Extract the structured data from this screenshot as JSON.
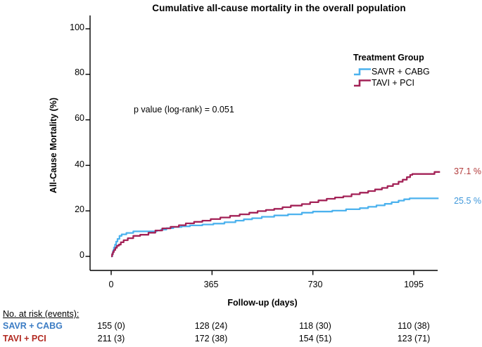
{
  "chart_data": {
    "type": "line",
    "subtype": "kaplan-meier-step",
    "title": "Cumulative all-cause mortality in the overall population",
    "xlabel": "Follow-up (days)",
    "ylabel": "All-Cause Mortality (%)",
    "xticks": [
      0,
      365,
      730,
      1095
    ],
    "yticks": [
      0,
      20,
      40,
      60,
      80,
      100
    ],
    "xlim": [
      0,
      1190
    ],
    "ylim": [
      0,
      100
    ],
    "grid": false,
    "annotation": "p value (log-rank) = 0.051",
    "legend": {
      "title": "Treatment Group",
      "position": "upper right"
    },
    "series": [
      {
        "name": "SAVR + CABG",
        "color": "#4CB2EE",
        "end_label": "25.5 %",
        "end_label_color": "#3E97DA",
        "points": [
          [
            0,
            0
          ],
          [
            4,
            1.3
          ],
          [
            7,
            2.6
          ],
          [
            10,
            3.9
          ],
          [
            14,
            5.2
          ],
          [
            18,
            6.5
          ],
          [
            23,
            7.7
          ],
          [
            30,
            9.0
          ],
          [
            38,
            9.7
          ],
          [
            55,
            10.3
          ],
          [
            80,
            11.0
          ],
          [
            165,
            11.4
          ],
          [
            180,
            11.8
          ],
          [
            200,
            12.4
          ],
          [
            225,
            12.9
          ],
          [
            255,
            13.2
          ],
          [
            285,
            13.6
          ],
          [
            330,
            14.0
          ],
          [
            370,
            14.4
          ],
          [
            410,
            15.0
          ],
          [
            450,
            15.7
          ],
          [
            480,
            16.3
          ],
          [
            510,
            16.8
          ],
          [
            545,
            17.4
          ],
          [
            590,
            18.0
          ],
          [
            640,
            18.5
          ],
          [
            690,
            19.2
          ],
          [
            730,
            19.7
          ],
          [
            800,
            20.1
          ],
          [
            850,
            20.7
          ],
          [
            900,
            21.2
          ],
          [
            930,
            21.8
          ],
          [
            960,
            22.4
          ],
          [
            990,
            23.1
          ],
          [
            1015,
            23.8
          ],
          [
            1040,
            24.5
          ],
          [
            1060,
            25.1
          ],
          [
            1080,
            25.5
          ],
          [
            1185,
            25.5
          ]
        ]
      },
      {
        "name": "TAVI + PCI",
        "color": "#A32257",
        "end_label": "37.1 %",
        "end_label_color": "#B23B3B",
        "points": [
          [
            0,
            0
          ],
          [
            3,
            0.9
          ],
          [
            6,
            1.9
          ],
          [
            10,
            2.8
          ],
          [
            15,
            3.8
          ],
          [
            21,
            4.7
          ],
          [
            28,
            5.2
          ],
          [
            35,
            6.2
          ],
          [
            45,
            7.1
          ],
          [
            60,
            8.0
          ],
          [
            80,
            9.0
          ],
          [
            105,
            9.5
          ],
          [
            135,
            10.4
          ],
          [
            160,
            11.4
          ],
          [
            185,
            12.3
          ],
          [
            215,
            13.0
          ],
          [
            245,
            13.7
          ],
          [
            270,
            14.5
          ],
          [
            300,
            15.2
          ],
          [
            330,
            15.7
          ],
          [
            360,
            16.4
          ],
          [
            395,
            17.1
          ],
          [
            430,
            17.8
          ],
          [
            465,
            18.5
          ],
          [
            500,
            19.2
          ],
          [
            530,
            19.9
          ],
          [
            560,
            20.4
          ],
          [
            590,
            20.9
          ],
          [
            620,
            21.6
          ],
          [
            650,
            22.3
          ],
          [
            690,
            23.0
          ],
          [
            720,
            23.8
          ],
          [
            750,
            24.6
          ],
          [
            780,
            25.3
          ],
          [
            810,
            25.9
          ],
          [
            840,
            26.4
          ],
          [
            870,
            27.3
          ],
          [
            900,
            28.0
          ],
          [
            930,
            28.7
          ],
          [
            955,
            29.4
          ],
          [
            980,
            30.1
          ],
          [
            1000,
            30.9
          ],
          [
            1020,
            31.8
          ],
          [
            1040,
            32.8
          ],
          [
            1055,
            33.7
          ],
          [
            1070,
            34.8
          ],
          [
            1082,
            35.8
          ],
          [
            1090,
            36.2
          ],
          [
            1170,
            37.1
          ],
          [
            1190,
            37.1
          ]
        ]
      }
    ],
    "risk_table": {
      "header": "No. at risk (events):",
      "rows": [
        {
          "label": "SAVR + CABG",
          "color": "#3B7CC4",
          "values": [
            "155 (0)",
            "128 (24)",
            "118 (30)",
            "110 (38)"
          ]
        },
        {
          "label": "TAVI + PCI",
          "color": "#B22A22",
          "values": [
            "211 (3)",
            "172 (38)",
            "154 (51)",
            "123 (71)"
          ]
        }
      ]
    }
  }
}
